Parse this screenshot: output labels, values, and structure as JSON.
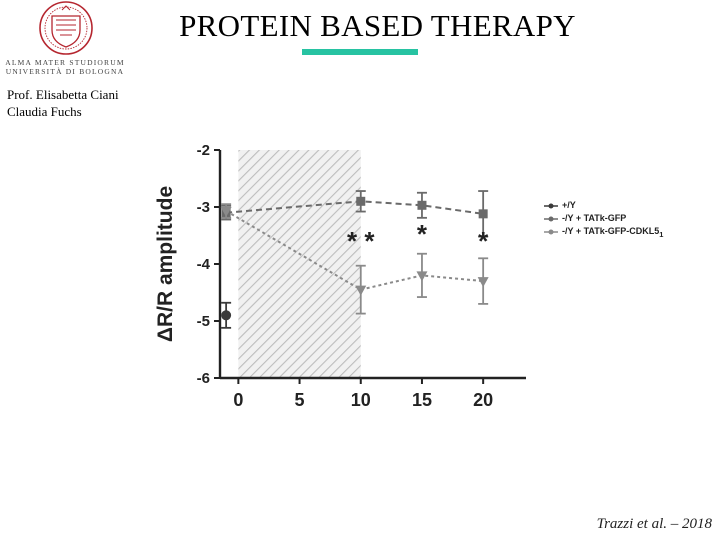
{
  "slide": {
    "title": "PROTEIN BASED THERAPY",
    "authors": [
      "Prof. Elisabetta Ciani",
      "Claudia Fuchs"
    ],
    "citation": "Trazzi et al. – 2018",
    "accent_color": "#27c3a2"
  },
  "logo": {
    "line1": "ALMA MATER STUDIORUM",
    "line2": "UNIVERSITÀ DI BOLOGNA",
    "icon": "university-seal-icon",
    "color": "#b5262f"
  },
  "chart_data": {
    "type": "line",
    "ylabel": "ΔR/R amplitude",
    "xlabel": "",
    "xlim": [
      -1.5,
      23.5
    ],
    "ylim": [
      -6,
      -2
    ],
    "x_ticks": [
      0,
      5,
      10,
      15,
      20
    ],
    "y_ticks": [
      -2,
      -3,
      -4,
      -5,
      -6
    ],
    "shaded_region": [
      0,
      10
    ],
    "grid": false,
    "legend_position": "right",
    "series": [
      {
        "name": "+/Y",
        "points": [
          {
            "x": -1,
            "y": -4.9,
            "err": 0.22
          }
        ],
        "marker": "circle",
        "color": "#3a3a3a",
        "dash": "none"
      },
      {
        "name": "-/Y + TATk-GFP",
        "points": [
          {
            "x": -1,
            "y": -3.1,
            "err": 0.12
          },
          {
            "x": 10,
            "y": -2.9,
            "err": 0.18
          },
          {
            "x": 15,
            "y": -2.97,
            "err": 0.22
          },
          {
            "x": 20,
            "y": -3.12,
            "err": 0.4
          }
        ],
        "marker": "square",
        "color": "#6a6a6a",
        "dash": "6,4"
      },
      {
        "name": "-/Y + TATk-GFP-CDKL5",
        "name_subscript": "1",
        "points": [
          {
            "x": -1,
            "y": -3.07,
            "err": 0.12
          },
          {
            "x": 10,
            "y": -4.45,
            "err": 0.42
          },
          {
            "x": 15,
            "y": -4.2,
            "err": 0.38
          },
          {
            "x": 20,
            "y": -4.3,
            "err": 0.4
          }
        ],
        "marker": "triangle-down",
        "color": "#8a8a8a",
        "dash": "3,3"
      }
    ],
    "annotations": [
      {
        "text": "* *",
        "x": 10,
        "y": -3.75
      },
      {
        "text": "*",
        "x": 15,
        "y": -3.63
      },
      {
        "text": "*",
        "x": 20,
        "y": -3.75
      }
    ]
  }
}
